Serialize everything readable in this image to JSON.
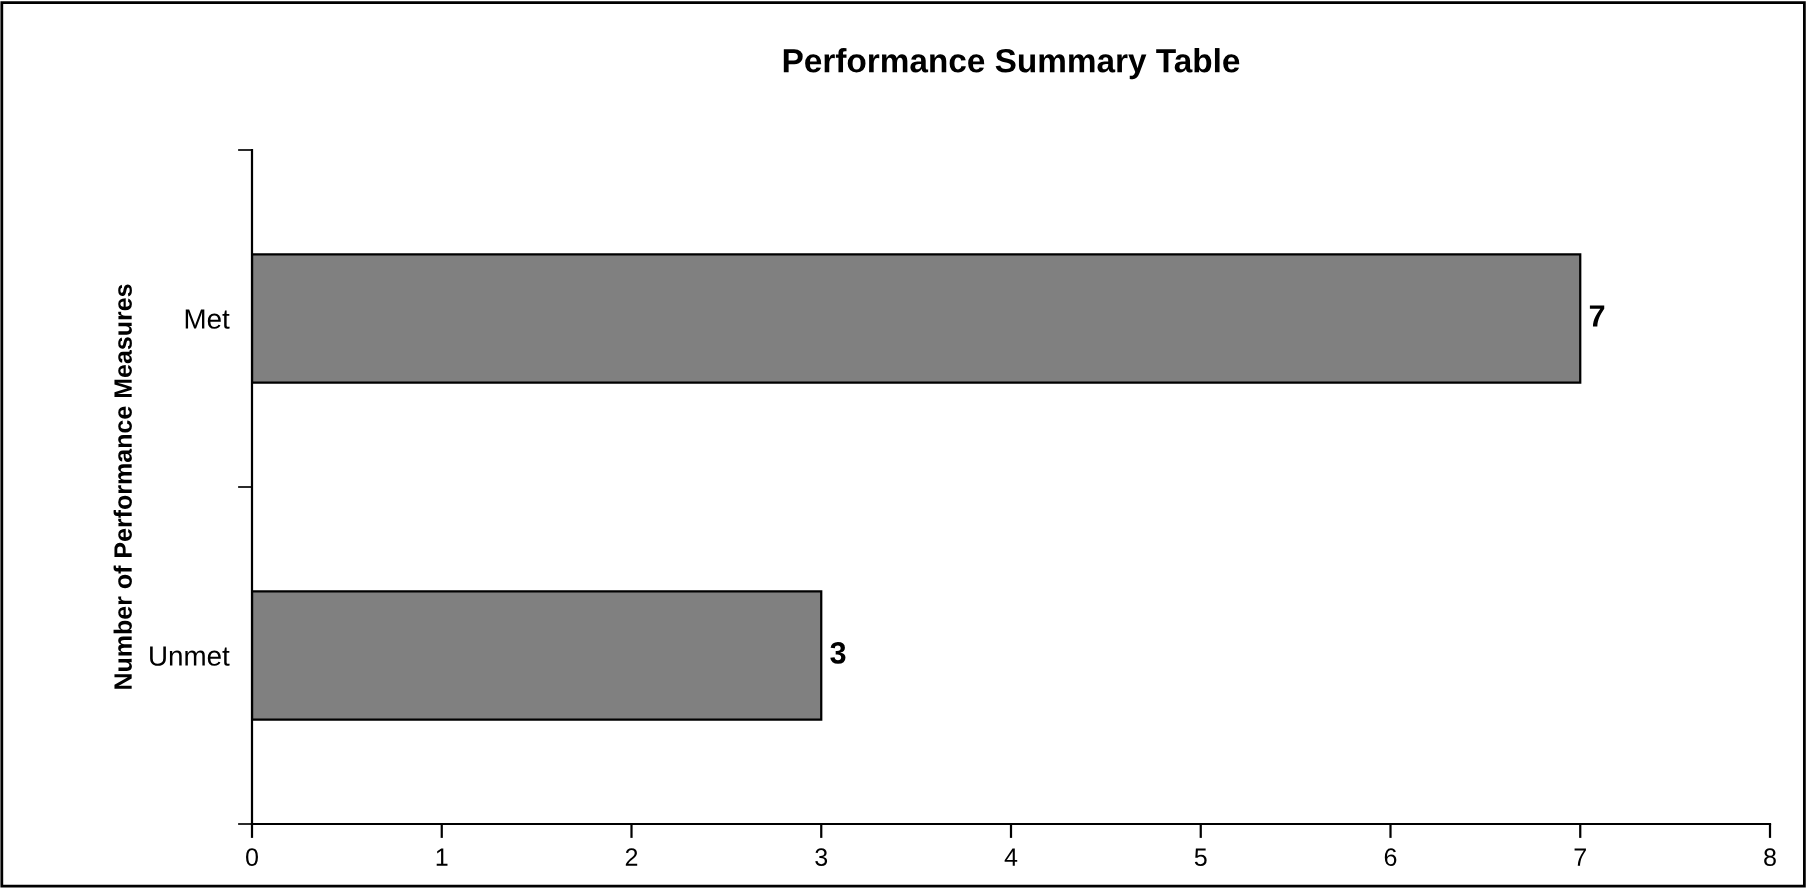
{
  "chart_data": {
    "type": "bar",
    "orientation": "horizontal",
    "title": "Performance Summary Table",
    "ylabel": "Number of Performance Measures",
    "categories": [
      "Met",
      "Unmet"
    ],
    "values": [
      7,
      3
    ],
    "color": "#808080",
    "xlim": [
      0,
      8
    ],
    "xticks": [
      0,
      1,
      2,
      3,
      4,
      5,
      6,
      7,
      8
    ],
    "data_labels": true,
    "grid": false,
    "legend": false
  }
}
